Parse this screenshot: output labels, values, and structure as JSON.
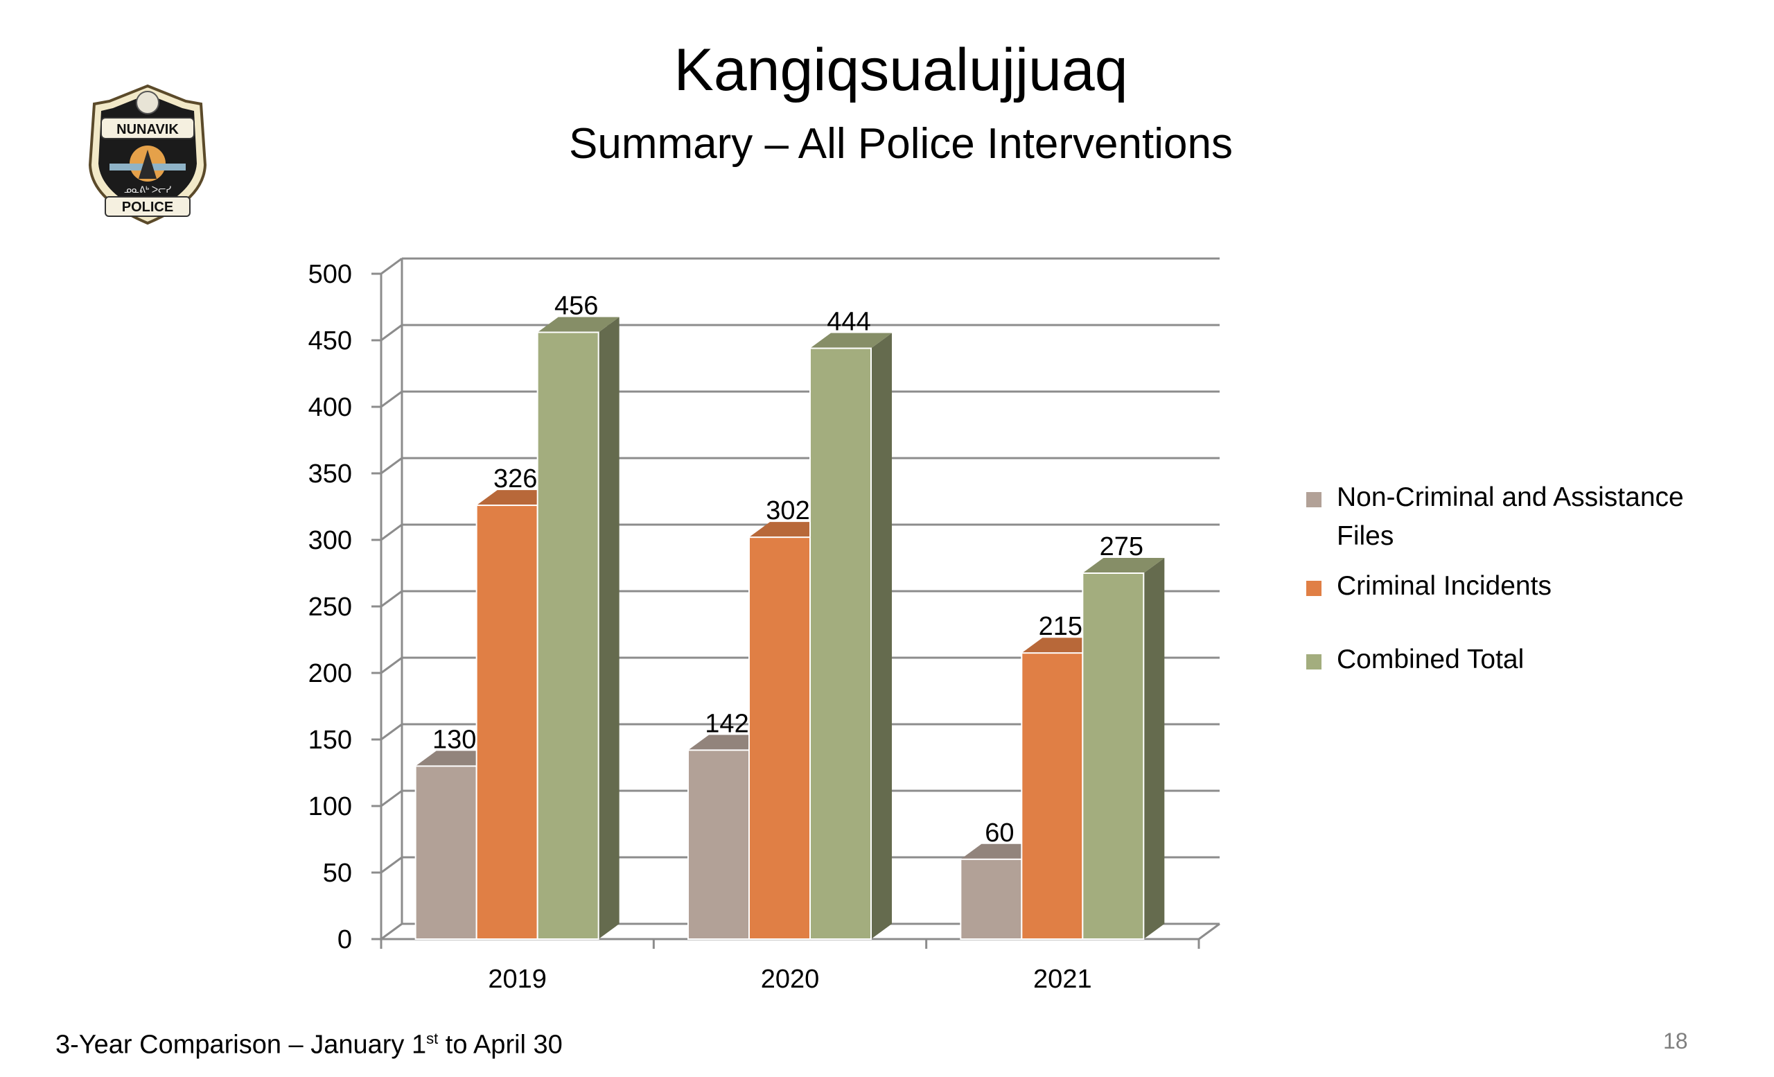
{
  "header": {
    "title": "Kangiqsualujjuaq",
    "subtitle": "Summary – All Police Interventions"
  },
  "logo": {
    "top_text": "NUNAVIK",
    "bottom_text": "POLICE",
    "icon": "nunavik-police-badge-icon"
  },
  "footer": {
    "text_before": "3-Year Comparison – January 1",
    "superscript": "st",
    "text_after": " to April 30",
    "page_number": "18"
  },
  "chart_data": {
    "type": "bar",
    "categories": [
      "2019",
      "2020",
      "2021"
    ],
    "series": [
      {
        "name": "Non-Criminal and Assistance Files",
        "values": [
          130,
          142,
          60
        ],
        "color": "#b2a197"
      },
      {
        "name": "Criminal Incidents",
        "values": [
          326,
          302,
          215
        ],
        "color": "#e07f45"
      },
      {
        "name": "Combined Total",
        "values": [
          456,
          444,
          275
        ],
        "color": "#a3ad7e"
      }
    ],
    "ylim": [
      0,
      500
    ],
    "yticks": [
      0,
      50,
      100,
      150,
      200,
      250,
      300,
      350,
      400,
      450,
      500
    ],
    "grid": true,
    "three_d": true,
    "legend_position": "right"
  }
}
